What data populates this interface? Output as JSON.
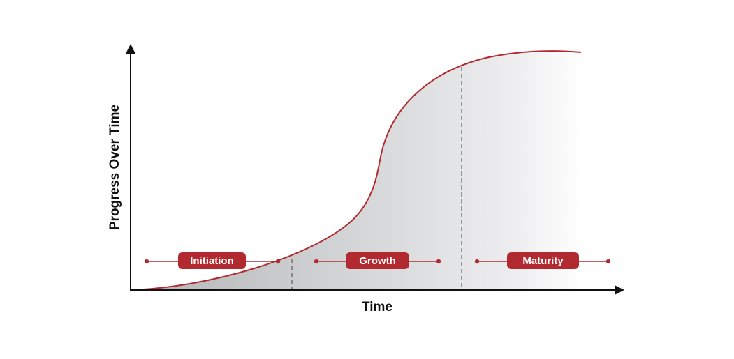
{
  "diagram": {
    "x_axis_label": "Time",
    "y_axis_label": "Progress Over Time",
    "stages": [
      {
        "name": "Initiation"
      },
      {
        "name": "Growth"
      },
      {
        "name": "Maturity"
      }
    ],
    "colors": {
      "accent": "#b22a30",
      "axis": "#111111",
      "fill_dark": "#bfc0c2",
      "fill_light": "#f4f4f5",
      "text_on_accent": "#ffffff"
    }
  }
}
